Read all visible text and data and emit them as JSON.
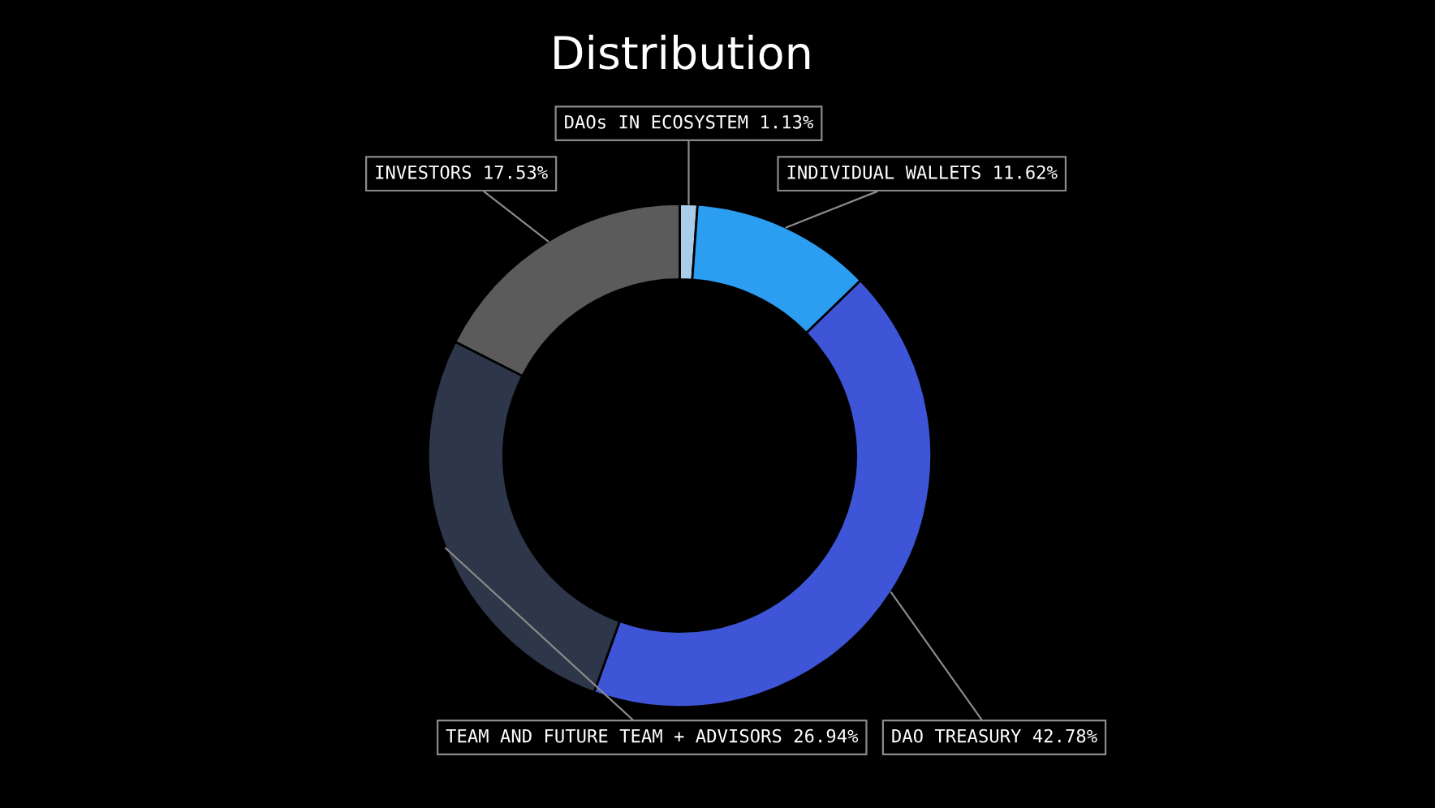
{
  "chart_data": {
    "type": "donut",
    "title": "Distribution",
    "categories": [
      "DAOs IN ECOSYSTEM",
      "INDIVIDUAL WALLETS",
      "DAO TREASURY",
      "TEAM AND FUTURE TEAM + ADVISORS",
      "INVESTORS"
    ],
    "values": [
      1.13,
      11.62,
      42.78,
      26.94,
      17.53
    ],
    "colors": [
      "#a9cde9",
      "#2b9ef2",
      "#3d55d6",
      "#2e3649",
      "#5b5b5b"
    ],
    "value_labels": [
      "1.13%",
      "11.62%",
      "42.78%",
      "26.94%",
      "17.53%"
    ]
  }
}
